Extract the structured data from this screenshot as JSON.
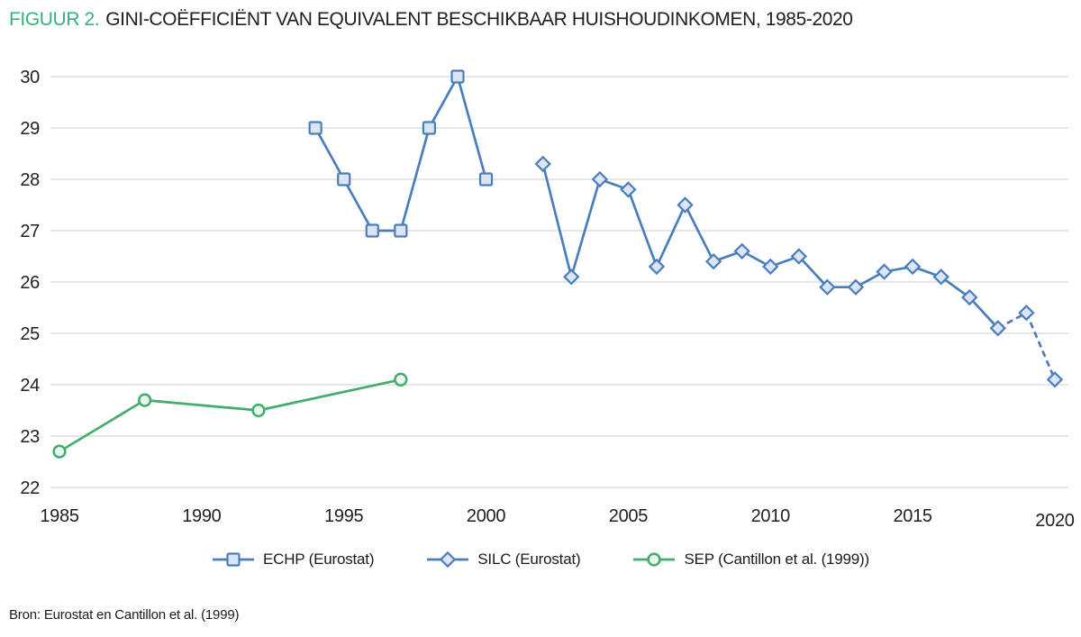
{
  "title": {
    "prefix": "FIGUUR 2.",
    "main": "GINI-COËFFICIËNT VAN EQUIVALENT BESCHIKBAAR HUISHOUDINKOMEN, 1985-2020"
  },
  "source": "Bron: Eurostat en Cantillon et al. (1999)",
  "colors": {
    "title_prefix_green": "#35b179",
    "title_text": "#1f1f1f",
    "axis_text": "#1f1f1f",
    "gridline": "#d8d8d8",
    "blue_line": "#4a7ebb",
    "blue_square_fill": "#dbe5f2",
    "blue_diamond_fill": "#dce4f5",
    "green_line": "#41ae6b",
    "green_circle_fill": "#e9f5ee"
  },
  "chart_data": {
    "type": "line",
    "title": "FIGUUR 2. GINI-COËFFICIËNT VAN EQUIVALENT BESCHIKBAAR HUISHOUDINKOMEN, 1985-2020",
    "xlabel": "",
    "ylabel": "",
    "x_axis": {
      "min": 1984.4,
      "max": 2020.6,
      "ticks": [
        1985,
        1990,
        1995,
        2000,
        2005,
        2010,
        2015,
        2020
      ]
    },
    "y_axis": {
      "min": 22,
      "max": 30,
      "ticks": [
        22,
        23,
        24,
        25,
        26,
        27,
        28,
        29,
        30
      ]
    },
    "grid": "horizontal-only",
    "legend_position": "bottom-center",
    "series": [
      {
        "name": "ECHP (Eurostat)",
        "marker": "square",
        "line_style": "solid",
        "color": "#4a7ebb",
        "marker_fill": "#dbe5f2",
        "points": [
          [
            1994,
            29
          ],
          [
            1995,
            28
          ],
          [
            1996,
            27
          ],
          [
            1997,
            27
          ],
          [
            1998,
            29
          ],
          [
            1999,
            30
          ],
          [
            2000,
            28
          ]
        ]
      },
      {
        "name": "SILC (Eurostat)",
        "marker": "diamond",
        "line_style": "solid-then-dashed",
        "dashed_from": 2018,
        "color": "#4a7ebb",
        "marker_fill": "#dce4f5",
        "points": [
          [
            2002,
            28.3
          ],
          [
            2003,
            26.1
          ],
          [
            2004,
            28
          ],
          [
            2005,
            27.8
          ],
          [
            2006,
            26.3
          ],
          [
            2007,
            27.5
          ],
          [
            2008,
            26.4
          ],
          [
            2009,
            26.6
          ],
          [
            2010,
            26.3
          ],
          [
            2011,
            26.5
          ],
          [
            2012,
            25.9
          ],
          [
            2013,
            25.9
          ],
          [
            2014,
            26.2
          ],
          [
            2015,
            26.3
          ],
          [
            2016,
            26.1
          ],
          [
            2017,
            25.7
          ],
          [
            2018,
            25.1
          ],
          [
            2019,
            25.4
          ],
          [
            2020,
            24.1
          ]
        ]
      },
      {
        "name": "SEP (Cantillon et al. (1999))",
        "marker": "circle",
        "line_style": "solid",
        "color": "#41ae6b",
        "marker_fill": "#e9f5ee",
        "points": [
          [
            1985,
            22.7
          ],
          [
            1988,
            23.7
          ],
          [
            1992,
            23.5
          ],
          [
            1997,
            24.1
          ]
        ]
      }
    ]
  }
}
